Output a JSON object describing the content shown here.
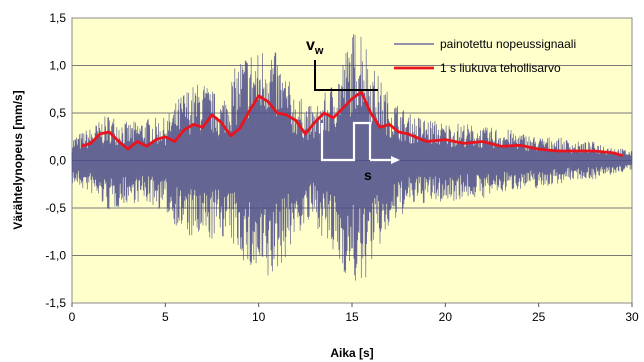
{
  "chart_data": {
    "type": "line",
    "xlabel": "Aika [s]",
    "ylabel": "Värähtelynopeus [mm/s]",
    "xlim": [
      0,
      30
    ],
    "ylim": [
      -1.5,
      1.5
    ],
    "x_ticks": [
      0,
      5,
      10,
      15,
      20,
      25,
      30
    ],
    "y_ticks": [
      -1.5,
      -1.0,
      -0.5,
      0.0,
      0.5,
      1.0,
      1.5
    ],
    "x_tick_labels": [
      "0",
      "5",
      "10",
      "15",
      "20",
      "25",
      "30"
    ],
    "y_tick_labels": [
      "-1,5",
      "-1,0",
      "-0,5",
      "0,0",
      "0,5",
      "1,0",
      "1,5"
    ],
    "grid": "horizontal",
    "legend_position": "top-right",
    "background_color": "#ffffcc",
    "series": [
      {
        "name": "painotettu nopeussignaali",
        "color": "#4a4a8a",
        "envelope": {
          "x": [
            0,
            1,
            2,
            3,
            4,
            5,
            6,
            7,
            8,
            9,
            9.5,
            10,
            10.5,
            11,
            12,
            13,
            14,
            15,
            15.5,
            16,
            17,
            18,
            19,
            20,
            21,
            22,
            23,
            24,
            25,
            26,
            27,
            28,
            29,
            30
          ],
          "upper": [
            0.25,
            0.35,
            0.5,
            0.4,
            0.45,
            0.45,
            0.75,
            0.85,
            0.65,
            1.1,
            1.2,
            1.15,
            1.35,
            1.1,
            0.7,
            0.55,
            0.85,
            1.35,
            1.5,
            1.05,
            0.7,
            0.5,
            0.45,
            0.4,
            0.4,
            0.35,
            0.35,
            0.3,
            0.25,
            0.25,
            0.2,
            0.2,
            0.15,
            0.1
          ],
          "lower": [
            -0.25,
            -0.35,
            -0.55,
            -0.45,
            -0.45,
            -0.55,
            -0.8,
            -0.9,
            -0.8,
            -1.0,
            -1.2,
            -1.3,
            -1.35,
            -1.2,
            -0.8,
            -0.65,
            -1.05,
            -1.3,
            -1.4,
            -1.1,
            -0.75,
            -0.5,
            -0.45,
            -0.45,
            -0.4,
            -0.4,
            -0.35,
            -0.3,
            -0.3,
            -0.25,
            -0.2,
            -0.2,
            -0.15,
            -0.1
          ]
        }
      },
      {
        "name": "1 s liukuva tehollisarvo",
        "color": "#e8141e",
        "x": [
          0.5,
          1.0,
          1.5,
          2.0,
          2.5,
          3.0,
          3.5,
          4.0,
          4.5,
          5.0,
          5.5,
          6.0,
          6.5,
          7.0,
          7.5,
          8.0,
          8.5,
          9.0,
          9.5,
          10.0,
          10.5,
          11.0,
          11.5,
          12.0,
          12.5,
          13.0,
          13.5,
          14.0,
          14.5,
          15.0,
          15.5,
          16.0,
          16.5,
          17.0,
          17.5,
          18.0,
          19.0,
          20.0,
          21.0,
          22.0,
          23.0,
          24.0,
          25.0,
          26.0,
          27.0,
          28.0,
          29.0,
          29.5
        ],
        "values": [
          0.15,
          0.18,
          0.28,
          0.3,
          0.2,
          0.12,
          0.2,
          0.15,
          0.22,
          0.25,
          0.2,
          0.32,
          0.38,
          0.35,
          0.48,
          0.4,
          0.26,
          0.34,
          0.52,
          0.68,
          0.62,
          0.5,
          0.48,
          0.42,
          0.28,
          0.4,
          0.5,
          0.45,
          0.55,
          0.65,
          0.72,
          0.5,
          0.35,
          0.38,
          0.3,
          0.28,
          0.2,
          0.22,
          0.18,
          0.2,
          0.15,
          0.16,
          0.12,
          0.1,
          0.1,
          0.1,
          0.08,
          0.05
        ]
      }
    ],
    "annotations": [
      {
        "text": "v",
        "subscript": "w",
        "x": 13.0,
        "y": 1.22
      },
      {
        "text": "s",
        "x": 14.5,
        "y": -0.12
      }
    ]
  }
}
